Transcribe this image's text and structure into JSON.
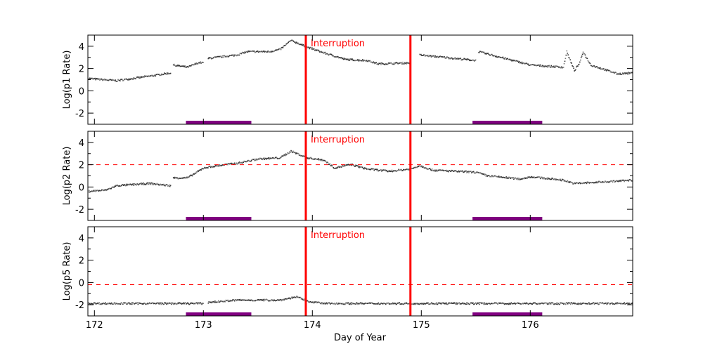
{
  "chart_data": {
    "type": "scatter",
    "xlabel": "Day of Year",
    "xlim": [
      171.94,
      176.94
    ],
    "xticks": [
      172,
      173,
      174,
      175,
      176
    ],
    "shared_x": true,
    "grid": false,
    "colors": {
      "points": "#333333",
      "interruption": "#ff0000",
      "dashed": "#ff0000",
      "bar": "#800080"
    },
    "interruption_lines": [
      173.94,
      174.9
    ],
    "interruption_label": "Interruption",
    "bars": [
      [
        172.84,
        173.44
      ],
      [
        175.47,
        176.11
      ]
    ],
    "panels": [
      {
        "ylabel": "Log(p1 Rate)",
        "ylim": [
          -3,
          5
        ],
        "yticks": [
          -2,
          0,
          2,
          4
        ],
        "dashed_threshold": null,
        "segments": [
          [
            [
              171.94,
              1.1
            ],
            [
              172.05,
              1.0
            ],
            [
              172.2,
              0.9
            ],
            [
              172.5,
              1.3
            ],
            [
              172.7,
              1.6
            ]
          ],
          [
            [
              172.72,
              2.3
            ],
            [
              172.85,
              2.1
            ],
            [
              172.95,
              2.5
            ],
            [
              173.0,
              2.5
            ]
          ],
          [
            [
              173.04,
              2.9
            ],
            [
              173.3,
              3.2
            ],
            [
              173.4,
              3.5
            ],
            [
              173.6,
              3.5
            ],
            [
              173.7,
              3.7
            ],
            [
              173.8,
              4.5
            ],
            [
              173.95,
              3.9
            ],
            [
              174.1,
              3.4
            ],
            [
              174.3,
              2.8
            ],
            [
              174.5,
              2.7
            ],
            [
              174.6,
              2.4
            ],
            [
              174.9,
              2.5
            ]
          ],
          [
            [
              174.98,
              3.2
            ],
            [
              175.3,
              2.9
            ],
            [
              175.5,
              2.7
            ]
          ],
          [
            [
              175.52,
              3.5
            ],
            [
              175.8,
              2.8
            ],
            [
              176.0,
              2.3
            ],
            [
              176.3,
              2.1
            ],
            [
              176.33,
              3.5
            ],
            [
              176.4,
              1.8
            ],
            [
              176.45,
              2.5
            ],
            [
              176.48,
              3.5
            ],
            [
              176.55,
              2.3
            ],
            [
              176.8,
              1.5
            ],
            [
              176.94,
              1.6
            ]
          ]
        ]
      },
      {
        "ylabel": "Log(p2 Rate)",
        "ylim": [
          -3,
          5
        ],
        "yticks": [
          -2,
          0,
          2,
          4
        ],
        "dashed_threshold": 2,
        "segments": [
          [
            [
              171.94,
              -0.4
            ],
            [
              172.1,
              -0.3
            ],
            [
              172.2,
              0.1
            ],
            [
              172.5,
              0.3
            ],
            [
              172.7,
              0.1
            ]
          ],
          [
            [
              172.72,
              0.8
            ],
            [
              172.85,
              0.8
            ],
            [
              173.0,
              1.7
            ],
            [
              173.2,
              2.0
            ],
            [
              173.3,
              2.1
            ],
            [
              173.5,
              2.5
            ],
            [
              173.7,
              2.6
            ],
            [
              173.8,
              3.2
            ],
            [
              173.95,
              2.6
            ],
            [
              174.1,
              2.4
            ],
            [
              174.2,
              1.7
            ],
            [
              174.35,
              2.0
            ],
            [
              174.5,
              1.6
            ],
            [
              174.7,
              1.4
            ],
            [
              174.9,
              1.6
            ],
            [
              174.98,
              1.9
            ],
            [
              175.1,
              1.5
            ],
            [
              175.5,
              1.3
            ],
            [
              175.6,
              1.0
            ],
            [
              175.9,
              0.7
            ],
            [
              176.0,
              0.9
            ],
            [
              176.3,
              0.6
            ],
            [
              176.4,
              0.3
            ],
            [
              176.6,
              0.4
            ],
            [
              176.94,
              0.6
            ]
          ]
        ]
      },
      {
        "ylabel": "Log(p5 Rate)",
        "ylim": [
          -3,
          5
        ],
        "yticks": [
          -2,
          0,
          2,
          4
        ],
        "dashed_threshold": -0.2,
        "segments": [
          [
            [
              171.94,
              -1.9
            ],
            [
              173.0,
              -1.9
            ]
          ],
          [
            [
              173.04,
              -1.8
            ],
            [
              173.3,
              -1.6
            ],
            [
              173.7,
              -1.6
            ],
            [
              173.85,
              -1.3
            ],
            [
              173.95,
              -1.7
            ],
            [
              174.1,
              -1.9
            ],
            [
              176.94,
              -1.9
            ]
          ]
        ]
      }
    ]
  }
}
